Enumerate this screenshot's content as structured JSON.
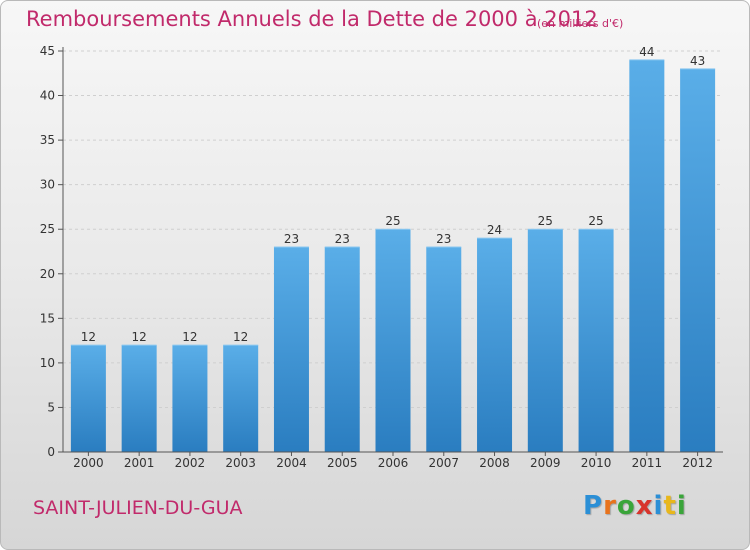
{
  "title": "Remboursements Annuels de la Dette de 2000 à 2012",
  "unit_note": "(en milliers d'€)",
  "commune": "SAINT-JULIEN-DU-GUA",
  "brand": {
    "letters": [
      "P",
      "r",
      "o",
      "x",
      "i",
      "t",
      "i"
    ],
    "colors": [
      "#2b8fd6",
      "#e8731c",
      "#3aa53a",
      "#d8342c",
      "#2b8fd6",
      "#e8b71c",
      "#3aa53a"
    ]
  },
  "colors": {
    "bar": "#4d9fdc",
    "title": "#c12a6b"
  },
  "chart_data": {
    "type": "bar",
    "categories": [
      "2000",
      "2001",
      "2002",
      "2003",
      "2004",
      "2005",
      "2006",
      "2007",
      "2008",
      "2009",
      "2010",
      "2011",
      "2012"
    ],
    "values": [
      12,
      12,
      12,
      12,
      23,
      23,
      25,
      23,
      24,
      25,
      25,
      44,
      43
    ],
    "ylim": [
      0,
      45
    ],
    "yticks": [
      0,
      5,
      10,
      15,
      20,
      25,
      30,
      35,
      40,
      45
    ],
    "grid": true,
    "legend": "none"
  }
}
